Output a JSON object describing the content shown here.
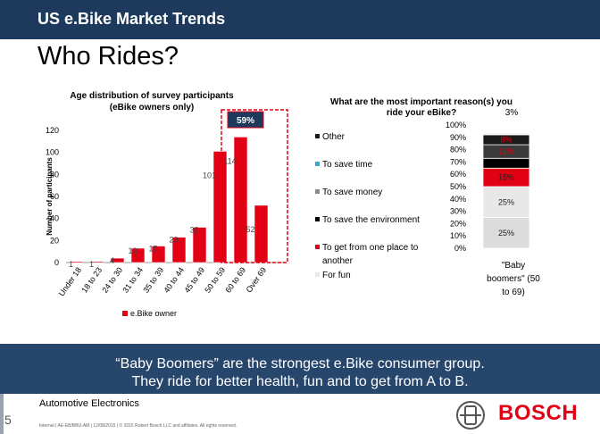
{
  "header": {
    "title": "US e.Bike Market Trends"
  },
  "page": {
    "title": "Who Rides?",
    "number": "5"
  },
  "chart_data": [
    {
      "type": "bar",
      "title": "Age distribution of survey participants (eBike owners only)",
      "title_lines": [
        "Age distribution of survey participants",
        "(eBike owners only)"
      ],
      "ylabel": "Number of participants",
      "xlabel": "",
      "ylim": [
        0,
        120
      ],
      "yticks": [
        0,
        20,
        40,
        60,
        80,
        100,
        120
      ],
      "categories": [
        "Under 18",
        "18 to 23",
        "24 to 30",
        "31 to 34",
        "35 to 39",
        "40 to 44",
        "45 to 49",
        "50 to 59",
        "60 to 69",
        "Over 69"
      ],
      "series": [
        {
          "name": "e.Bike owner",
          "values": [
            1,
            1,
            4,
            13,
            15,
            23,
            32,
            101,
            114,
            52
          ],
          "color": "#e20015"
        }
      ],
      "annotation": "59%",
      "legend": "bottom"
    },
    {
      "type": "bar",
      "stacked": true,
      "title": "What are the most important reason(s) you ride your eBike?",
      "title_lines": [
        "What are the most important reason(s) you",
        "ride your eBike?"
      ],
      "ylim": [
        0,
        100
      ],
      "yticks": [
        "0%",
        "10%",
        "20%",
        "30%",
        "40%",
        "50%",
        "60%",
        "70%",
        "80%",
        "90%",
        "100%"
      ],
      "categories": [
        "\"Baby boomers\" (50 to 69)"
      ],
      "category_lines": [
        "\"Baby",
        "boomers\" (50",
        "to 69)"
      ],
      "series": [
        {
          "name": "For fun",
          "value": 25,
          "label": "25%",
          "color": "#dcdcdc"
        },
        {
          "name": "To get from one place to another",
          "label_lines": [
            "To get from one place to",
            "another"
          ],
          "value": 25,
          "label": "25%",
          "color": "#e8e8e8"
        },
        {
          "name": "To save the environment",
          "value": 15,
          "label": "15%",
          "color": "#e20015"
        },
        {
          "name": "To save money",
          "value": 8,
          "label": "",
          "color": "#000000"
        },
        {
          "name": "To save time",
          "value": 11,
          "label": "11%",
          "color": "#3a3a3a"
        },
        {
          "name": "Other",
          "value": 8,
          "label": "8%",
          "color": "#1a1a1a"
        }
      ],
      "top_label": "3%",
      "legend": "left"
    }
  ],
  "banner": {
    "lines": [
      "“Baby Boomers” are the strongest e.Bike consumer group.",
      "They ride for better health, fun and to get from A to B."
    ]
  },
  "footer": {
    "department": "Automotive Electronics",
    "legal": "Internal | AE-EB/BBU-AM | 12/08/2015 | © 2015 Robert Bosch LLC and affiliates. All rights reserved.",
    "brand": "BOSCH"
  },
  "colors": {
    "header": "#1d3a5c",
    "banner": "#27466c",
    "accent": "#e20015"
  }
}
